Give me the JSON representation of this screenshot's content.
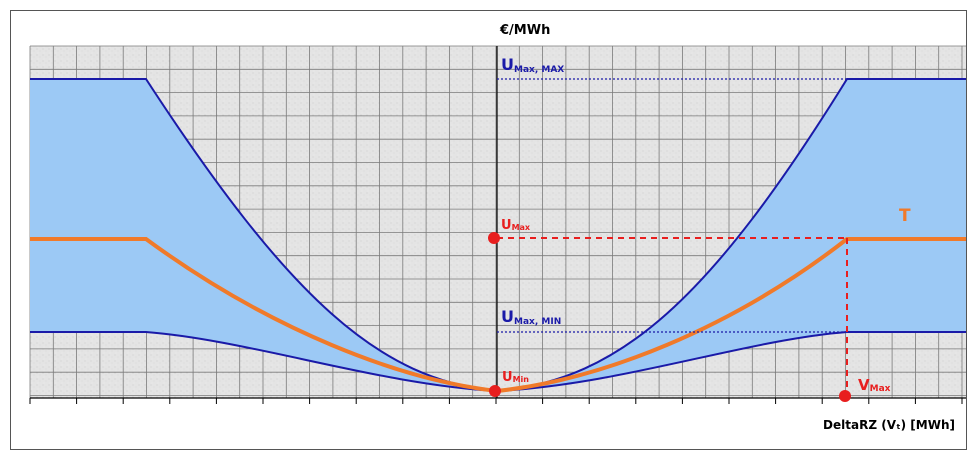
{
  "labels": {
    "y_unit": "€/MWh",
    "x_axis": "DeltaRZ (Vₜ) [MWh]",
    "umaxmax_main": "U",
    "umaxmax_sub": "Max, MAX",
    "umaxmin_main": "U",
    "umaxmin_sub": "Max, MIN",
    "umax_main": "U",
    "umax_sub": "Max",
    "umin_main": "U",
    "umin_sub": "Min",
    "vmax_main": "V",
    "vmax_sub": "Max",
    "t_label": "T"
  },
  "colors": {
    "band_fill": "#9cc9f5",
    "boundary_line": "#1a1aa8",
    "t_curve": "#f07a2a",
    "marker": "#e81e1e",
    "grid_bg": "#e6e6e6",
    "grid_line": "#7a7a7a"
  }
}
